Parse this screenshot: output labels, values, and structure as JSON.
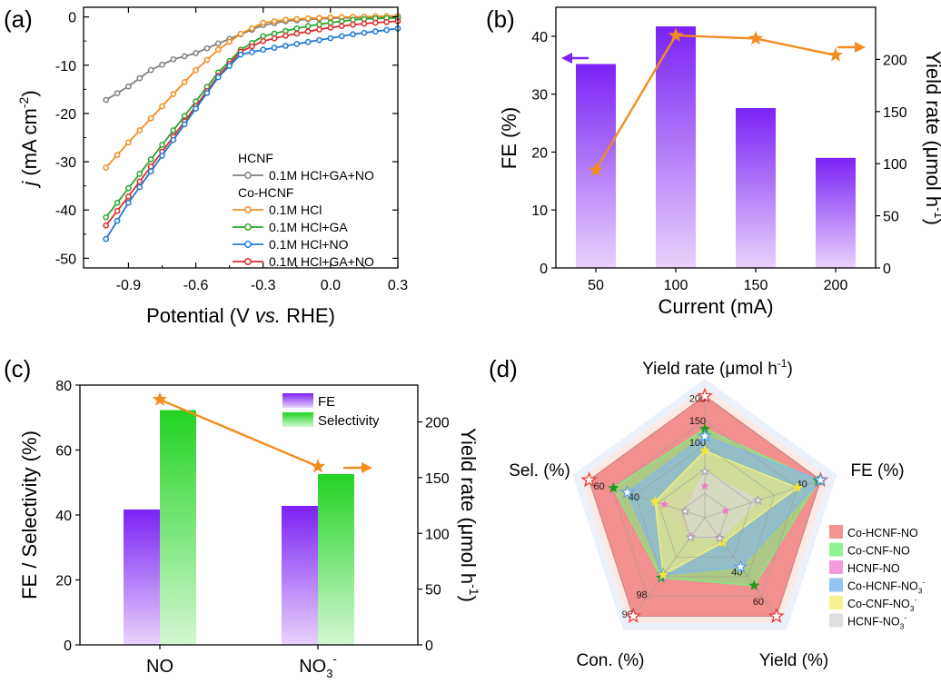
{
  "chart_data": [
    {
      "panel": "(a)",
      "type": "line",
      "xlabel_prefix": "Potential (V ",
      "xlabel_italic": "vs.",
      "xlabel_suffix": " RHE)",
      "ylabel_main": "j",
      "ylabel_rest": " (mA cm",
      "ylabel_sup": "-2",
      "ylabel_close": ")",
      "xlim": [
        -1.1,
        0.3
      ],
      "ylim": [
        -52,
        2
      ],
      "xticks": [
        -0.9,
        -0.6,
        -0.3,
        0.0,
        0.3
      ],
      "xtick_labels": [
        "-0.9",
        "-0.6",
        "-0.3",
        "0.0",
        "0.3"
      ],
      "yticks": [
        0,
        -10,
        -20,
        -30,
        -40,
        -50
      ],
      "ytick_labels": [
        "0",
        "-10",
        "-20",
        "-30",
        "-40",
        "-50"
      ],
      "legend_groups": [
        {
          "title": "HCNF",
          "series_index": [
            0
          ]
        },
        {
          "title": "Co-HCNF",
          "series_index": [
            1,
            2,
            3,
            4
          ]
        }
      ],
      "series": [
        {
          "name": "0.1M HCl+GA+NO",
          "color": "#808080",
          "x": [
            -1.0,
            -0.9,
            -0.8,
            -0.7,
            -0.6,
            -0.5,
            -0.4,
            -0.3,
            -0.2,
            -0.1,
            0.0,
            0.1,
            0.2,
            0.3
          ],
          "y": [
            -17.2,
            -14.4,
            -11.0,
            -8.8,
            -7.5,
            -5.5,
            -3.6,
            -1.7,
            -0.9,
            -0.5,
            -0.3,
            -0.15,
            -0.05,
            0.0
          ]
        },
        {
          "name": "0.1M HCl",
          "color": "#f28c1e",
          "x": [
            -1.0,
            -0.9,
            -0.8,
            -0.7,
            -0.6,
            -0.5,
            -0.4,
            -0.3,
            -0.2,
            -0.1,
            0.0,
            0.1,
            0.2,
            0.3
          ],
          "y": [
            -31.2,
            -26.0,
            -21.0,
            -16.0,
            -11.0,
            -6.8,
            -3.5,
            -1.2,
            -0.6,
            -0.3,
            -0.1,
            0.0,
            0.1,
            0.2
          ]
        },
        {
          "name": "0.1M HCl+GA",
          "color": "#2aa52a",
          "x": [
            -1.0,
            -0.9,
            -0.8,
            -0.7,
            -0.6,
            -0.5,
            -0.4,
            -0.3,
            -0.2,
            -0.1,
            0.0,
            0.1,
            0.2,
            0.3
          ],
          "y": [
            -41.5,
            -35.5,
            -29.5,
            -23.5,
            -17.5,
            -11.5,
            -6.8,
            -4.0,
            -2.9,
            -1.9,
            -1.2,
            -0.6,
            -0.3,
            -0.2
          ]
        },
        {
          "name": "0.1M HCl+NO",
          "color": "#1e78d7",
          "x": [
            -1.0,
            -0.9,
            -0.8,
            -0.7,
            -0.6,
            -0.5,
            -0.4,
            -0.3,
            -0.2,
            -0.1,
            0.0,
            0.1,
            0.2,
            0.3
          ],
          "y": [
            -46.0,
            -38.5,
            -32.0,
            -25.5,
            -19.0,
            -12.5,
            -7.8,
            -6.8,
            -6.0,
            -5.2,
            -4.4,
            -3.6,
            -3.0,
            -2.4
          ]
        },
        {
          "name": "0.1M HCl+GA+NO",
          "color": "#e02a2a",
          "x": [
            -1.0,
            -0.9,
            -0.8,
            -0.7,
            -0.6,
            -0.5,
            -0.4,
            -0.3,
            -0.2,
            -0.1,
            0.0,
            0.1,
            0.2,
            0.3
          ],
          "y": [
            -43.2,
            -37.2,
            -31.0,
            -24.8,
            -18.5,
            -12.2,
            -7.2,
            -5.0,
            -3.9,
            -3.0,
            -2.2,
            -1.6,
            -1.2,
            -0.9
          ]
        }
      ]
    },
    {
      "panel": "(b)",
      "type": "bar",
      "xlabel": "Current (mA)",
      "ylabel": "FE (%)",
      "ylabel_right_prefix": "Yield rate (μmol h",
      "ylabel_right_sup": "-1",
      "ylabel_right_suffix": ")",
      "categories": [
        "50",
        "100",
        "150",
        "200"
      ],
      "ylim": [
        0,
        45
      ],
      "yticks": [
        0,
        10,
        20,
        30,
        40
      ],
      "ytick_labels": [
        "0",
        "10",
        "20",
        "30",
        "40"
      ],
      "y2lim": [
        0,
        250
      ],
      "y2ticks": [
        0,
        50,
        100,
        150,
        200
      ],
      "y2tick_labels": [
        "0",
        "50",
        "100",
        "150",
        "200"
      ],
      "bar_series": {
        "name": "FE",
        "values": [
          35.2,
          41.7,
          27.6,
          19.0
        ],
        "color_top": "#7b22f5",
        "color_bottom": "#e8d2fc"
      },
      "line_series": {
        "name": "Yield rate",
        "values": [
          94,
          223,
          220,
          204
        ],
        "color": "#f28c1e"
      }
    },
    {
      "panel": "(c)",
      "type": "bar",
      "ylabel": "FE / Selectivity (%)",
      "ylabel_right_prefix": "Yield rate (μmol h",
      "ylabel_right_sup": "-1",
      "ylabel_right_suffix": ")",
      "categories": [
        "NO",
        "NO3-"
      ],
      "category_display": [
        {
          "base": "NO",
          "sub": "",
          "sup": ""
        },
        {
          "base": "NO",
          "sub": "3",
          "sup": "-"
        }
      ],
      "ylim": [
        0,
        80
      ],
      "yticks": [
        0,
        20,
        40,
        60,
        80
      ],
      "ytick_labels": [
        "0",
        "20",
        "40",
        "60",
        "80"
      ],
      "y2lim": [
        0,
        233
      ],
      "y2ticks": [
        0,
        50,
        100,
        150,
        200
      ],
      "y2tick_labels": [
        "0",
        "50",
        "100",
        "150",
        "200"
      ],
      "series": [
        {
          "name": "FE",
          "values": [
            41.7,
            42.8
          ],
          "color_top": "#7b22f5",
          "color_bottom": "#e8d2fc"
        },
        {
          "name": "Selectivity",
          "values": [
            72.3,
            52.6
          ],
          "color_top": "#22d322",
          "color_bottom": "#d2f8d2"
        }
      ],
      "line_series": {
        "name": "Yield rate",
        "values": [
          220,
          160
        ],
        "color": "#f28c1e"
      }
    },
    {
      "panel": "(d)",
      "type": "radar",
      "axes": [
        {
          "prefix": "Yield rate (μmol h",
          "sup": "-1",
          "suffix": ")"
        },
        {
          "prefix": "FE (%)",
          "sup": "",
          "suffix": ""
        },
        {
          "prefix": "Yield (%)",
          "sup": "",
          "suffix": ""
        },
        {
          "prefix": "Con. (%)",
          "sup": "",
          "suffix": ""
        },
        {
          "prefix": "Sel. (%)",
          "sup": "",
          "suffix": ""
        }
      ],
      "ring_labels": [
        {
          "axis": 0,
          "labels": [
            "100",
            "150",
            "200"
          ]
        },
        {
          "axis": 1,
          "labels": [
            "40"
          ]
        },
        {
          "axis": 2,
          "labels": [
            "40",
            "60"
          ]
        },
        {
          "axis": 3,
          "labels": [
            "98",
            "99"
          ]
        },
        {
          "axis": 4,
          "labels": [
            "40",
            "60"
          ]
        }
      ],
      "series": [
        {
          "name": "Co-HCNF-NO",
          "sup": "",
          "color": "#f08080",
          "values": [
            1.0,
            1.0,
            1.0,
            1.0,
            1.0
          ]
        },
        {
          "name": "Co-CNF-NO",
          "sup": "",
          "color": "#7ef07e",
          "values": [
            0.73,
            0.98,
            0.69,
            0.61,
            0.79
          ]
        },
        {
          "name": "HCNF-NO",
          "sup": "",
          "color": "#f08cd2",
          "values": [
            0.26,
            0.18,
            0.2,
            0.19,
            0.35
          ]
        },
        {
          "name": "Co-HCNF-NO",
          "sup": "3-",
          "color": "#82b8f0",
          "values": [
            0.67,
            1.0,
            0.5,
            0.58,
            0.67
          ]
        },
        {
          "name": "Co-CNF-NO",
          "sup": "3-",
          "color": "#f5f07a",
          "values": [
            0.55,
            0.8,
            0.25,
            0.58,
            0.43
          ]
        },
        {
          "name": "HCNF-NO",
          "sup": "3-",
          "color": "#d9d9d9",
          "values": [
            0.38,
            0.46,
            0.21,
            0.2,
            0.17
          ]
        }
      ]
    }
  ]
}
